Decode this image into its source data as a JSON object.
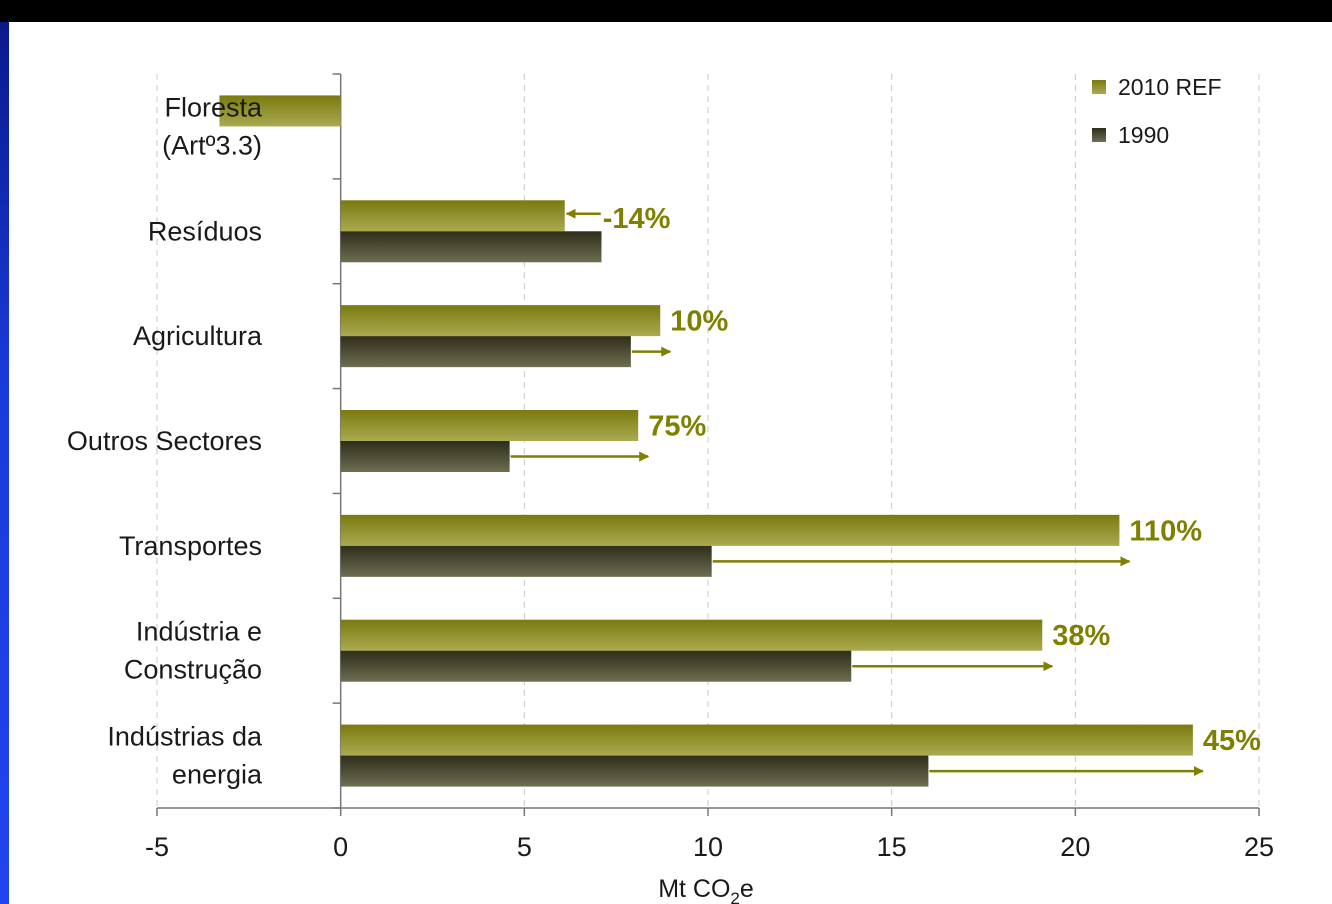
{
  "chart_data": {
    "type": "bar",
    "orientation": "horizontal",
    "categories": [
      "Floresta (Artº3.3)",
      "Resíduos",
      "Agricultura",
      "Outros Sectores",
      "Transportes",
      "Indústria e Construção",
      "Indústrias da energia"
    ],
    "category_lines": [
      [
        "Floresta",
        "(Artº3.3)"
      ],
      [
        "Resíduos"
      ],
      [
        "Agricultura"
      ],
      [
        "Outros Sectores"
      ],
      [
        "Transportes"
      ],
      [
        "Indústria e",
        "Construção"
      ],
      [
        "Indústrias da",
        "energia"
      ]
    ],
    "series": [
      {
        "name": "2010 REF",
        "values": [
          -3.3,
          6.1,
          8.7,
          8.1,
          21.2,
          19.1,
          23.2
        ],
        "color": "#8a8a1e"
      },
      {
        "name": "1990",
        "values": [
          null,
          7.1,
          7.9,
          4.6,
          10.1,
          13.9,
          16.0
        ],
        "color": "#4a4a32"
      }
    ],
    "change_labels": [
      null,
      "-14%",
      "10%",
      "75%",
      "110%",
      "38%",
      "45%"
    ],
    "change_color": "#7f7f00",
    "xlabel_main": "Mt CO",
    "xlabel_sub": "2",
    "xlabel_tail": "e",
    "xlim": [
      -5,
      25
    ],
    "xticks": [
      "-5",
      "0",
      "5",
      "10",
      "15",
      "20",
      "25"
    ],
    "grid": true,
    "legend_position": "top-right"
  }
}
